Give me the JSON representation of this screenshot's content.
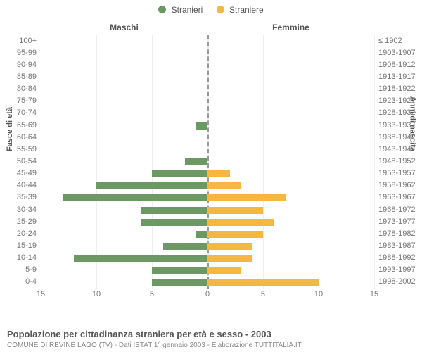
{
  "legend": {
    "series": [
      {
        "label": "Stranieri",
        "color": "#6b9863"
      },
      {
        "label": "Straniere",
        "color": "#f6b742"
      }
    ]
  },
  "chart": {
    "type": "population-pyramid",
    "left_title": "Maschi",
    "right_title": "Femmine",
    "y_left_title": "Fasce di età",
    "y_right_title": "Anni di nascita",
    "x_ticks": [
      15,
      10,
      5,
      0,
      5,
      10,
      15
    ],
    "x_max": 15,
    "background_color": "#ffffff",
    "grid_color": "#eeeeee",
    "center_line_color": "#999999",
    "bar_colors": {
      "male": "#6b9863",
      "female": "#f6b742"
    },
    "label_color": "#777777",
    "title_color": "#555555",
    "tick_fontsize": 11,
    "title_fontsize": 12,
    "rows": [
      {
        "age": "100+",
        "birth": "≤ 1902",
        "m": 0,
        "f": 0
      },
      {
        "age": "95-99",
        "birth": "1903-1907",
        "m": 0,
        "f": 0
      },
      {
        "age": "90-94",
        "birth": "1908-1912",
        "m": 0,
        "f": 0
      },
      {
        "age": "85-89",
        "birth": "1913-1917",
        "m": 0,
        "f": 0
      },
      {
        "age": "80-84",
        "birth": "1918-1922",
        "m": 0,
        "f": 0
      },
      {
        "age": "75-79",
        "birth": "1923-1927",
        "m": 0,
        "f": 0
      },
      {
        "age": "70-74",
        "birth": "1928-1932",
        "m": 0,
        "f": 0
      },
      {
        "age": "65-69",
        "birth": "1933-1937",
        "m": 1,
        "f": 0
      },
      {
        "age": "60-64",
        "birth": "1938-1942",
        "m": 0,
        "f": 0
      },
      {
        "age": "55-59",
        "birth": "1943-1947",
        "m": 0,
        "f": 0
      },
      {
        "age": "50-54",
        "birth": "1948-1952",
        "m": 2,
        "f": 0
      },
      {
        "age": "45-49",
        "birth": "1953-1957",
        "m": 5,
        "f": 2
      },
      {
        "age": "40-44",
        "birth": "1958-1962",
        "m": 10,
        "f": 3
      },
      {
        "age": "35-39",
        "birth": "1963-1967",
        "m": 13,
        "f": 7
      },
      {
        "age": "30-34",
        "birth": "1968-1972",
        "m": 6,
        "f": 5
      },
      {
        "age": "25-29",
        "birth": "1973-1977",
        "m": 6,
        "f": 6
      },
      {
        "age": "20-24",
        "birth": "1978-1982",
        "m": 1,
        "f": 5
      },
      {
        "age": "15-19",
        "birth": "1983-1987",
        "m": 4,
        "f": 4
      },
      {
        "age": "10-14",
        "birth": "1988-1992",
        "m": 12,
        "f": 4
      },
      {
        "age": "5-9",
        "birth": "1993-1997",
        "m": 5,
        "f": 3
      },
      {
        "age": "0-4",
        "birth": "1998-2002",
        "m": 5,
        "f": 10
      }
    ]
  },
  "footer": {
    "title": "Popolazione per cittadinanza straniera per età e sesso - 2003",
    "subtitle": "COMUNE DI REVINE LAGO (TV) - Dati ISTAT 1° gennaio 2003 - Elaborazione TUTTITALIA.IT"
  }
}
